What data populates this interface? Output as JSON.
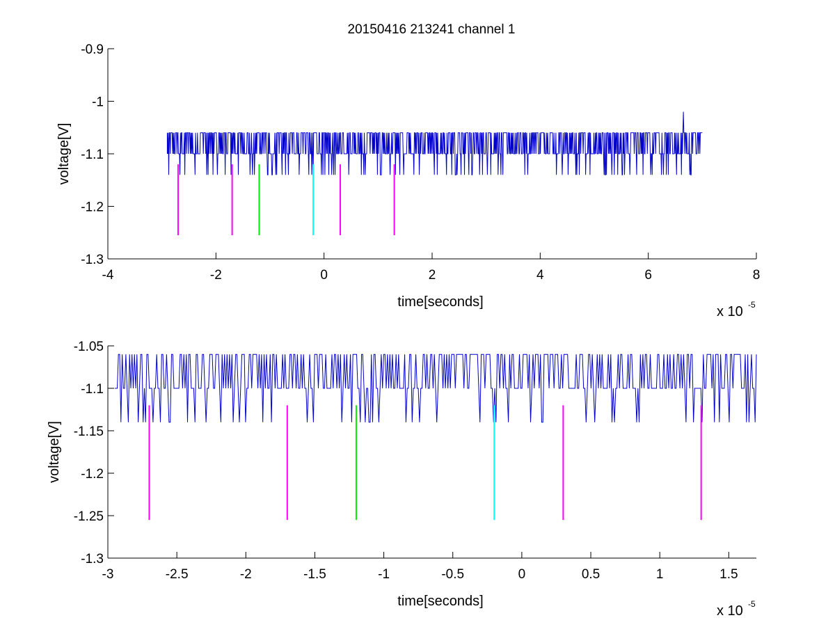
{
  "title": "20150416 213241 channel 1",
  "colors": {
    "signal": "#0000cc",
    "marker_magenta": "#ff00ff",
    "marker_green": "#00ee00",
    "marker_cyan": "#00ffff",
    "axis": "#000000"
  },
  "chart_data": [
    {
      "type": "line",
      "title": "20150416 213241 channel 1",
      "xlabel": "time[seconds]",
      "ylabel": "voltage[V]",
      "x_multiplier_label": "x 10",
      "x_multiplier_exponent": "-5",
      "xlim": [
        -4,
        8
      ],
      "ylim": [
        -1.3,
        -0.9
      ],
      "xticks": [
        -4,
        -2,
        0,
        2,
        4,
        6,
        8
      ],
      "xtick_labels": [
        "-4",
        "-2",
        "0",
        "2",
        "4",
        "6",
        "8"
      ],
      "yticks": [
        -1.3,
        -1.2,
        -1.1,
        -1,
        -0.9
      ],
      "ytick_labels": [
        "-1.3",
        "-1.2",
        "-1.1",
        "-1",
        "-0.9"
      ],
      "grid": false,
      "series": [
        {
          "kind": "signal",
          "x_range": [
            -2.9,
            7.0
          ],
          "baseline": -1.1,
          "levels": [
            -1.14,
            -1.1,
            -1.06
          ],
          "spike": {
            "x": 6.65,
            "y": -1.02
          },
          "color": "#0000cc"
        }
      ],
      "markers": [
        {
          "x": -2.7,
          "y_top": -1.12,
          "y_bottom": -1.255,
          "color": "#ff00ff"
        },
        {
          "x": -1.7,
          "y_top": -1.12,
          "y_bottom": -1.255,
          "color": "#ff00ff"
        },
        {
          "x": -1.2,
          "y_top": -1.12,
          "y_bottom": -1.255,
          "color": "#00ee00"
        },
        {
          "x": -0.2,
          "y_top": -1.12,
          "y_bottom": -1.255,
          "color": "#00ffff"
        },
        {
          "x": 0.3,
          "y_top": -1.12,
          "y_bottom": -1.255,
          "color": "#ff00ff"
        },
        {
          "x": 1.3,
          "y_top": -1.12,
          "y_bottom": -1.255,
          "color": "#ff00ff"
        }
      ]
    },
    {
      "type": "line",
      "title": "",
      "xlabel": "time[seconds]",
      "ylabel": "voltage[V]",
      "x_multiplier_label": "x 10",
      "x_multiplier_exponent": "-5",
      "xlim": [
        -3.0,
        1.7
      ],
      "ylim": [
        -1.3,
        -1.05
      ],
      "xticks": [
        -3,
        -2.5,
        -2,
        -1.5,
        -1,
        -0.5,
        0,
        0.5,
        1,
        1.5
      ],
      "xtick_labels": [
        "-3",
        "-2.5",
        "-2",
        "-1.5",
        "-1",
        "-0.5",
        "0",
        "0.5",
        "1",
        "1.5"
      ],
      "yticks": [
        -1.3,
        -1.25,
        -1.2,
        -1.15,
        -1.1,
        -1.05
      ],
      "ytick_labels": [
        "-1.3",
        "-1.25",
        "-1.2",
        "-1.15",
        "-1.1",
        "-1.05"
      ],
      "grid": false,
      "series": [
        {
          "kind": "signal",
          "x_range": [
            -2.95,
            1.7
          ],
          "baseline": -1.1,
          "levels": [
            -1.14,
            -1.1,
            -1.06
          ],
          "color": "#0000cc"
        }
      ],
      "markers": [
        {
          "x": -2.7,
          "y_top": -1.12,
          "y_bottom": -1.255,
          "color": "#ff00ff"
        },
        {
          "x": -1.7,
          "y_top": -1.12,
          "y_bottom": -1.255,
          "color": "#ff00ff"
        },
        {
          "x": -1.2,
          "y_top": -1.12,
          "y_bottom": -1.255,
          "color": "#00ee00"
        },
        {
          "x": -0.2,
          "y_top": -1.12,
          "y_bottom": -1.255,
          "color": "#00ffff"
        },
        {
          "x": 0.3,
          "y_top": -1.12,
          "y_bottom": -1.255,
          "color": "#ff00ff"
        },
        {
          "x": 1.3,
          "y_top": -1.12,
          "y_bottom": -1.255,
          "color": "#ff00ff"
        }
      ]
    }
  ]
}
